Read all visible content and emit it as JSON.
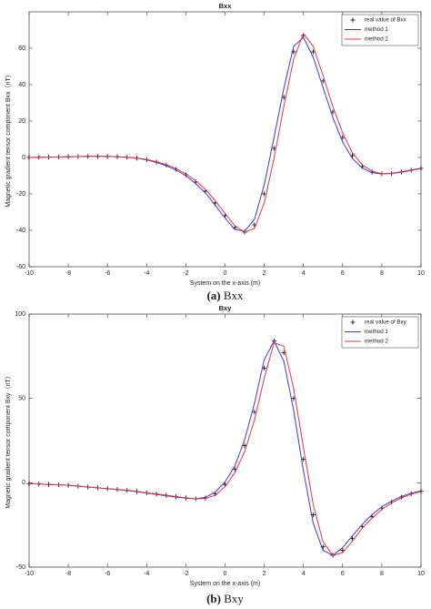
{
  "chart_data": [
    {
      "type": "line",
      "title": "Bxx",
      "caption_tag": "(a)",
      "caption": "Bxx",
      "xlabel": "System on the x-axis (m)",
      "ylabel": "Magnetic gradient tensor component Bxx（nT）",
      "xlim": [
        -10,
        10
      ],
      "xticks": [
        -10,
        -8,
        -6,
        -4,
        -2,
        0,
        2,
        4,
        6,
        8,
        10
      ],
      "ylim": [
        -60,
        80
      ],
      "yticks": [
        -60,
        -40,
        -20,
        0,
        20,
        40,
        60
      ],
      "grid": false,
      "legend": "upper right",
      "x": [
        -10,
        -9.5,
        -9,
        -8.5,
        -8,
        -7.5,
        -7,
        -6.5,
        -6,
        -5.5,
        -5,
        -4.5,
        -4,
        -3.5,
        -3,
        -2.5,
        -2,
        -1.5,
        -1,
        -0.5,
        0,
        0.5,
        1,
        1.5,
        2,
        2.5,
        3,
        3.5,
        4,
        4.5,
        5,
        5.5,
        6,
        6.5,
        7,
        7.5,
        8,
        8.5,
        9,
        9.5,
        10
      ],
      "series": [
        {
          "name": "real value of Bxx",
          "color": "#000000",
          "marker": "+",
          "values": [
            0,
            0.1,
            0.2,
            0.3,
            0.4,
            0.5,
            0.6,
            0.6,
            0.6,
            0.4,
            0.1,
            -0.4,
            -1.2,
            -2.5,
            -4.2,
            -6.5,
            -9.5,
            -13.5,
            -18.5,
            -25,
            -32,
            -38.5,
            -41,
            -37,
            -20,
            5,
            33,
            58,
            67,
            58,
            42,
            25,
            11,
            1,
            -5,
            -8,
            -9,
            -8.8,
            -8,
            -7,
            -6
          ]
        },
        {
          "name": "method 1",
          "color": "#3b3bd6",
          "marker": "line",
          "values": [
            0,
            0.1,
            0.2,
            0.3,
            0.4,
            0.5,
            0.6,
            0.6,
            0.6,
            0.4,
            0.1,
            -0.4,
            -1.3,
            -2.7,
            -4.5,
            -6.9,
            -10,
            -14.3,
            -19.5,
            -26.3,
            -33.3,
            -39.5,
            -40.5,
            -34,
            -15,
            11,
            38,
            61,
            66,
            55,
            38.5,
            22,
            8.5,
            -0.5,
            -5.8,
            -8.3,
            -9,
            -8.7,
            -7.9,
            -6.9,
            -5.9
          ]
        },
        {
          "name": "method 2",
          "color": "#e8343c",
          "marker": "line",
          "values": [
            0,
            0.1,
            0.2,
            0.3,
            0.4,
            0.5,
            0.6,
            0.6,
            0.6,
            0.4,
            0.1,
            -0.3,
            -1.1,
            -2.3,
            -3.9,
            -6.1,
            -9,
            -12.7,
            -17.5,
            -23.8,
            -30.7,
            -37.5,
            -41,
            -39,
            -25,
            -0.5,
            28,
            54,
            68,
            61,
            45,
            28,
            13.5,
            2.5,
            -4,
            -7.5,
            -8.9,
            -8.9,
            -8.1,
            -7.1,
            -6.1
          ]
        }
      ]
    },
    {
      "type": "line",
      "title": "Bxy",
      "caption_tag": "(b)",
      "caption": "Bxy",
      "xlabel": "System on the x-axis (m)",
      "ylabel": "Magnetic gradient tensor component Bxy（nT）",
      "xlim": [
        -10,
        10
      ],
      "xticks": [
        -10,
        -8,
        -6,
        -4,
        -2,
        0,
        2,
        4,
        6,
        8,
        10
      ],
      "ylim": [
        -50,
        100
      ],
      "yticks": [
        -50,
        0,
        50,
        100
      ],
      "grid": false,
      "legend": "upper right",
      "x": [
        -10,
        -9.5,
        -9,
        -8.5,
        -8,
        -7.5,
        -7,
        -6.5,
        -6,
        -5.5,
        -5,
        -4.5,
        -4,
        -3.5,
        -3,
        -2.5,
        -2,
        -1.5,
        -1,
        -0.5,
        0,
        0.5,
        1,
        1.5,
        2,
        2.5,
        3,
        3.5,
        4,
        4.5,
        5,
        5.5,
        6,
        6.5,
        7,
        7.5,
        8,
        8.5,
        9,
        9.5,
        10
      ],
      "series": [
        {
          "name": "real value of Bxy",
          "color": "#000000",
          "marker": "+",
          "values": [
            -0.5,
            -0.7,
            -1,
            -1.2,
            -1.5,
            -2,
            -2.5,
            -3,
            -3.5,
            -4,
            -4.5,
            -5.2,
            -6,
            -6.7,
            -7.5,
            -8.3,
            -9,
            -9.5,
            -9,
            -6.5,
            -1,
            8,
            22,
            42,
            68,
            84,
            77,
            50,
            14,
            -19,
            -38,
            -43,
            -40,
            -33,
            -26,
            -20,
            -15,
            -11.5,
            -8.5,
            -6.5,
            -5
          ]
        },
        {
          "name": "method 1",
          "color": "#3b3bd6",
          "marker": "line",
          "values": [
            -0.5,
            -0.7,
            -1,
            -1.2,
            -1.5,
            -2,
            -2.5,
            -3,
            -3.5,
            -4,
            -4.6,
            -5.3,
            -6.1,
            -6.9,
            -7.7,
            -8.5,
            -9.1,
            -9.5,
            -8.6,
            -5.5,
            0.5,
            10,
            25.5,
            47,
            73,
            84,
            72,
            43,
            7,
            -24,
            -40,
            -43,
            -38.5,
            -31.5,
            -24.7,
            -18.9,
            -14.2,
            -10.9,
            -8.1,
            -6.2,
            -4.8
          ]
        },
        {
          "name": "method 2",
          "color": "#e8343c",
          "marker": "line",
          "values": [
            -0.5,
            -0.7,
            -1,
            -1.2,
            -1.5,
            -2,
            -2.5,
            -3,
            -3.5,
            -4,
            -4.4,
            -5.1,
            -5.9,
            -6.6,
            -7.4,
            -8.2,
            -8.9,
            -9.5,
            -9.3,
            -7.4,
            -2.3,
            6,
            18.5,
            37,
            62,
            83,
            81,
            56,
            21,
            -13,
            -35,
            -43,
            -41.5,
            -34.5,
            -27,
            -21,
            -15.8,
            -12,
            -9,
            -6.8,
            -5.2
          ]
        }
      ]
    }
  ]
}
